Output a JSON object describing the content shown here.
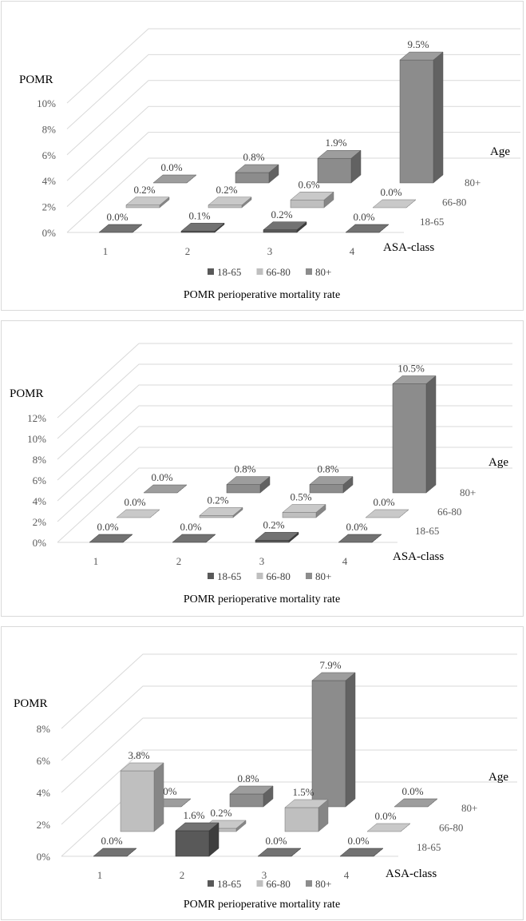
{
  "legend_items": [
    "18-65",
    "66-80",
    "80+"
  ],
  "colors": {
    "18-65": "#595959",
    "66-80": "#bfbfbf",
    "80+": "#8c8c8c"
  },
  "chart_data": [
    {
      "type": "bar",
      "title": "",
      "caption": "POMR perioperative mortality rate",
      "ylabel": "POMR",
      "xlabel": "ASA-class",
      "zlabel": "Age",
      "categories": [
        "1",
        "2",
        "3",
        "4"
      ],
      "depth_categories": [
        "18-65",
        "66-80",
        "80+"
      ],
      "yticks": [
        "0%",
        "2%",
        "4%",
        "6%",
        "8%",
        "10%"
      ],
      "ylim": [
        0,
        10
      ],
      "series": [
        {
          "name": "18-65",
          "values": [
            0.0,
            0.1,
            0.2,
            0.0
          ],
          "labels": [
            "0.0%",
            "0.1%",
            "0.2%",
            "0.0%"
          ]
        },
        {
          "name": "66-80",
          "values": [
            0.2,
            0.2,
            0.6,
            0.0
          ],
          "labels": [
            "0.2%",
            "0.2%",
            "0.6%",
            "0.0%"
          ]
        },
        {
          "name": "80+",
          "values": [
            0.0,
            0.8,
            1.9,
            9.5
          ],
          "labels": [
            "0.0%",
            "0.8%",
            "1.9%",
            "9.5%"
          ]
        }
      ]
    },
    {
      "type": "bar",
      "title": "",
      "caption": "POMR perioperative mortality rate",
      "ylabel": "POMR",
      "xlabel": "ASA-class",
      "zlabel": "Age",
      "categories": [
        "1",
        "2",
        "3",
        "4"
      ],
      "depth_categories": [
        "18-65",
        "66-80",
        "80+"
      ],
      "yticks": [
        "0%",
        "2%",
        "4%",
        "6%",
        "8%",
        "10%",
        "12%"
      ],
      "ylim": [
        0,
        12
      ],
      "series": [
        {
          "name": "18-65",
          "values": [
            0.0,
            0.0,
            0.2,
            0.0
          ],
          "labels": [
            "0.0%",
            "0.0%",
            "0.2%",
            "0.0%"
          ]
        },
        {
          "name": "66-80",
          "values": [
            0.0,
            0.2,
            0.5,
            0.0
          ],
          "labels": [
            "0.0%",
            "0.2%",
            "0.5%",
            "0.0%"
          ]
        },
        {
          "name": "80+",
          "values": [
            0.0,
            0.8,
            0.8,
            10.5
          ],
          "labels": [
            "0.0%",
            "0.8%",
            "0.8%",
            "10.5%"
          ]
        }
      ]
    },
    {
      "type": "bar",
      "title": "",
      "caption": "POMR perioperative mortality rate",
      "ylabel": "POMR",
      "xlabel": "ASA-class",
      "zlabel": "Age",
      "categories": [
        "1",
        "2",
        "3",
        "4"
      ],
      "depth_categories": [
        "18-65",
        "66-80",
        "80+"
      ],
      "yticks": [
        "0%",
        "2%",
        "4%",
        "6%",
        "8%"
      ],
      "ylim": [
        0,
        8
      ],
      "series": [
        {
          "name": "18-65",
          "values": [
            0.0,
            1.6,
            0.0,
            0.0
          ],
          "labels": [
            "0.0%",
            "1.6%",
            "0.0%",
            "0.0%"
          ]
        },
        {
          "name": "66-80",
          "values": [
            3.8,
            0.2,
            1.5,
            0.0
          ],
          "labels": [
            "3.8%",
            "0.2%",
            "1.5%",
            "0.0%"
          ]
        },
        {
          "name": "80+",
          "values": [
            0.0,
            0.8,
            7.9,
            0.0
          ],
          "labels": [
            "0.0%",
            "0.8%",
            "7.9%",
            "0.0%"
          ]
        }
      ]
    }
  ]
}
